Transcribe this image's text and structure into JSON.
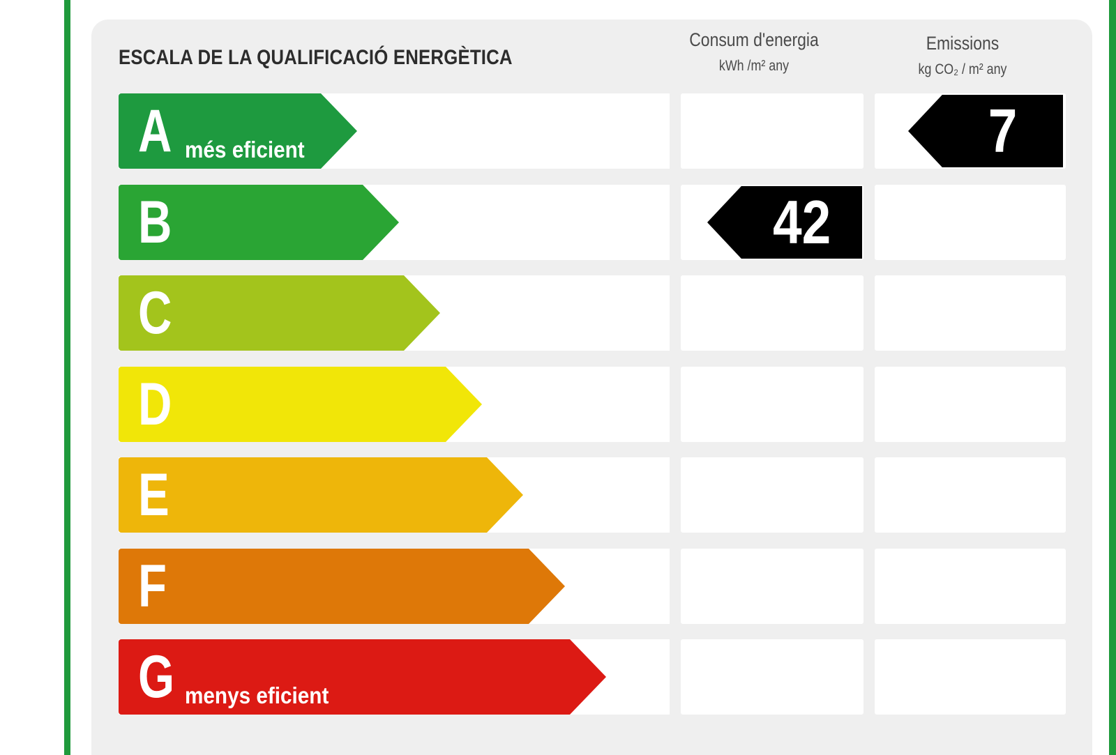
{
  "title": "ESCALA DE LA QUALIFICACIÓ ENERGÈTICA",
  "columns": {
    "energy": {
      "label": "Consum d'energia",
      "unit": "kWh /m² any"
    },
    "emissions": {
      "label": "Emissions",
      "unit": "kg CO₂ / m² any"
    }
  },
  "ratings": [
    {
      "letter": "A",
      "subtitle": "més eficient",
      "color": "#1e9a3f"
    },
    {
      "letter": "B",
      "subtitle": "",
      "color": "#2aa534"
    },
    {
      "letter": "C",
      "subtitle": "",
      "color": "#a3c41c"
    },
    {
      "letter": "D",
      "subtitle": "",
      "color": "#f1e608"
    },
    {
      "letter": "E",
      "subtitle": "",
      "color": "#eeb60a"
    },
    {
      "letter": "F",
      "subtitle": "",
      "color": "#de7808"
    },
    {
      "letter": "G",
      "subtitle": "menys eficient",
      "color": "#dc1a14"
    }
  ],
  "energy_rating": {
    "letter": "B",
    "value": "42"
  },
  "emissions_rating": {
    "letter": "A",
    "value": "7"
  }
}
